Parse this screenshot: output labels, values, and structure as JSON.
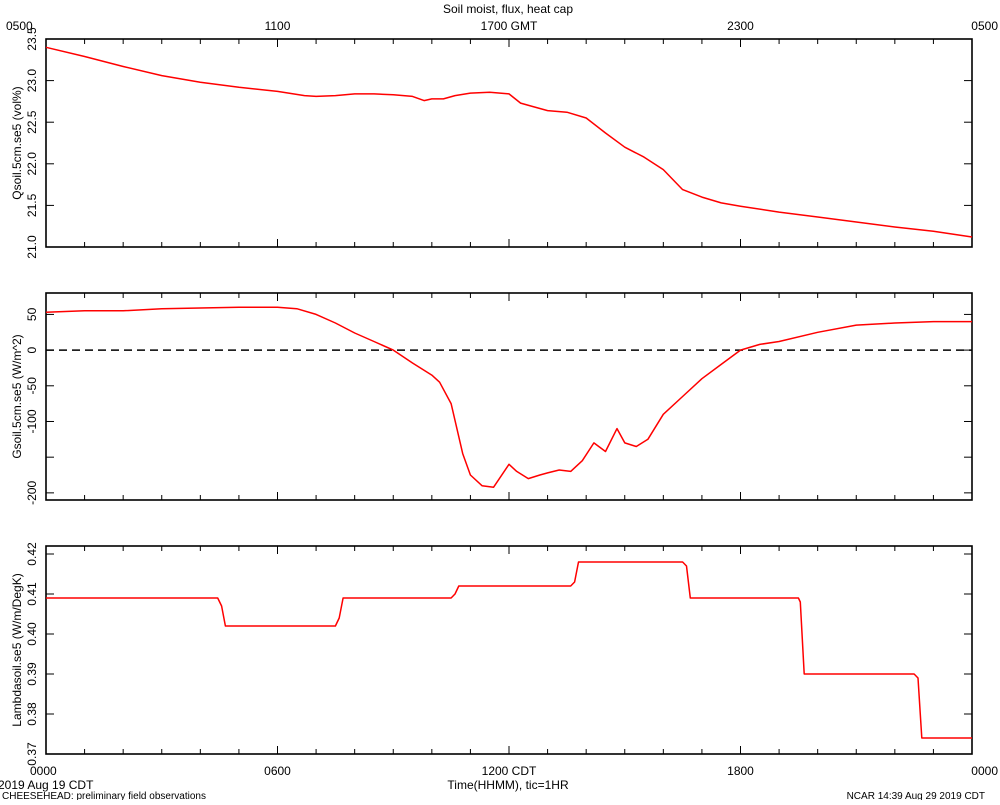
{
  "top_axis": {
    "title": "Soil moist, flux, heat cap",
    "ticks": [
      {
        "hour": 0,
        "label": "0500"
      },
      {
        "hour": 6,
        "label": "1100"
      },
      {
        "hour": 12,
        "label": "1700 GMT"
      },
      {
        "hour": 18,
        "label": "2300"
      },
      {
        "hour": 24,
        "label": "0500"
      }
    ]
  },
  "bottom_axis": {
    "title": "Time(HHMM), tic=1HR",
    "ticks": [
      {
        "hour": 0,
        "label": "0000"
      },
      {
        "hour": 6,
        "label": "0600"
      },
      {
        "hour": 12,
        "label": "1200 CDT"
      },
      {
        "hour": 18,
        "label": "1800"
      },
      {
        "hour": 24,
        "label": "0000"
      }
    ]
  },
  "footer": {
    "date": "2019 Aug 19 CDT",
    "project": "CHEESEHEAD: preliminary field observations",
    "stamp": "NCAR 14:39 Aug 29 2019 CDT"
  },
  "colors": {
    "series": "#ff0000",
    "frame": "#000000",
    "zero_line": "#000000"
  },
  "chart_data": [
    {
      "type": "line",
      "ylabel": "Qsoil.5cm.se5 (vol%)",
      "ylim": [
        21.0,
        23.5
      ],
      "yticks": [
        {
          "v": 21.0,
          "label": "21.0"
        },
        {
          "v": 21.5,
          "label": "21.5"
        },
        {
          "v": 22.0,
          "label": "22.0"
        },
        {
          "v": 22.5,
          "label": "22.5"
        },
        {
          "v": 23.0,
          "label": "23.0"
        },
        {
          "v": 23.5,
          "label": "23.5"
        }
      ],
      "xlim": [
        0,
        24
      ],
      "x": [
        0,
        1,
        2,
        3,
        4,
        5,
        6,
        6.7,
        7,
        7.5,
        8,
        8.5,
        9,
        9.5,
        9.8,
        10,
        10.3,
        10.6,
        11,
        11.5,
        12,
        12.3,
        12.6,
        13,
        13.5,
        14,
        14.5,
        15,
        15.5,
        16,
        16.5,
        17,
        17.5,
        18,
        19,
        20,
        21,
        22,
        23,
        24
      ],
      "values": [
        23.4,
        23.29,
        23.17,
        23.06,
        22.98,
        22.92,
        22.87,
        22.82,
        22.81,
        22.82,
        22.84,
        22.84,
        22.83,
        22.81,
        22.76,
        22.78,
        22.78,
        22.82,
        22.85,
        22.86,
        22.84,
        22.73,
        22.69,
        22.64,
        22.62,
        22.55,
        22.37,
        22.2,
        22.08,
        21.93,
        21.69,
        21.6,
        21.53,
        21.49,
        21.42,
        21.36,
        21.3,
        21.24,
        21.19,
        21.12
      ]
    },
    {
      "type": "line",
      "ylabel": "Gsoil.5cm.se5 (W/m^2)",
      "ylim": [
        -210,
        80
      ],
      "yticks": [
        {
          "v": -200,
          "label": "-200"
        },
        {
          "v": -150,
          "label": ""
        },
        {
          "v": -100,
          "label": "-100"
        },
        {
          "v": -50,
          "label": "-50"
        },
        {
          "v": 0,
          "label": "0"
        },
        {
          "v": 50,
          "label": "50"
        }
      ],
      "reference_line": 0,
      "xlim": [
        0,
        24
      ],
      "x": [
        0,
        1,
        2,
        3,
        4,
        5,
        6,
        6.5,
        7,
        7.5,
        8,
        8.5,
        9,
        9.5,
        10,
        10.2,
        10.5,
        10.8,
        11,
        11.3,
        11.6,
        12,
        12.2,
        12.5,
        12.8,
        13,
        13.3,
        13.6,
        13.9,
        14.2,
        14.5,
        14.8,
        15,
        15.3,
        15.6,
        16,
        16.5,
        17,
        17.5,
        18,
        18.5,
        19,
        20,
        21,
        22,
        23,
        24
      ],
      "values": [
        53,
        55,
        55,
        58,
        59,
        60,
        60,
        58,
        50,
        38,
        24,
        12,
        0,
        -18,
        -35,
        -45,
        -75,
        -145,
        -175,
        -190,
        -192,
        -160,
        -170,
        -180,
        -175,
        -172,
        -168,
        -170,
        -155,
        -130,
        -142,
        -110,
        -130,
        -135,
        -125,
        -90,
        -65,
        -40,
        -20,
        0,
        8,
        12,
        25,
        35,
        38,
        40,
        40
      ]
    },
    {
      "type": "line",
      "ylabel": "Lambdasoil.se5 (W/m/DegK)",
      "ylim": [
        0.37,
        0.422
      ],
      "yticks": [
        {
          "v": 0.37,
          "label": "0.37"
        },
        {
          "v": 0.38,
          "label": "0.38"
        },
        {
          "v": 0.39,
          "label": "0.39"
        },
        {
          "v": 0.4,
          "label": "0.40"
        },
        {
          "v": 0.41,
          "label": "0.41"
        },
        {
          "v": 0.42,
          "label": "0.42"
        }
      ],
      "xlim": [
        0,
        24
      ],
      "x": [
        0,
        4.45,
        4.55,
        4.65,
        7.5,
        7.6,
        7.7,
        10.5,
        10.6,
        10.7,
        13.6,
        13.7,
        13.8,
        16.5,
        16.6,
        16.7,
        19.5,
        19.55,
        19.65,
        22.5,
        22.6,
        22.7,
        24
      ],
      "values": [
        0.409,
        0.409,
        0.407,
        0.402,
        0.402,
        0.404,
        0.409,
        0.409,
        0.41,
        0.412,
        0.412,
        0.413,
        0.418,
        0.418,
        0.417,
        0.409,
        0.409,
        0.408,
        0.39,
        0.39,
        0.389,
        0.374,
        0.374
      ]
    }
  ]
}
